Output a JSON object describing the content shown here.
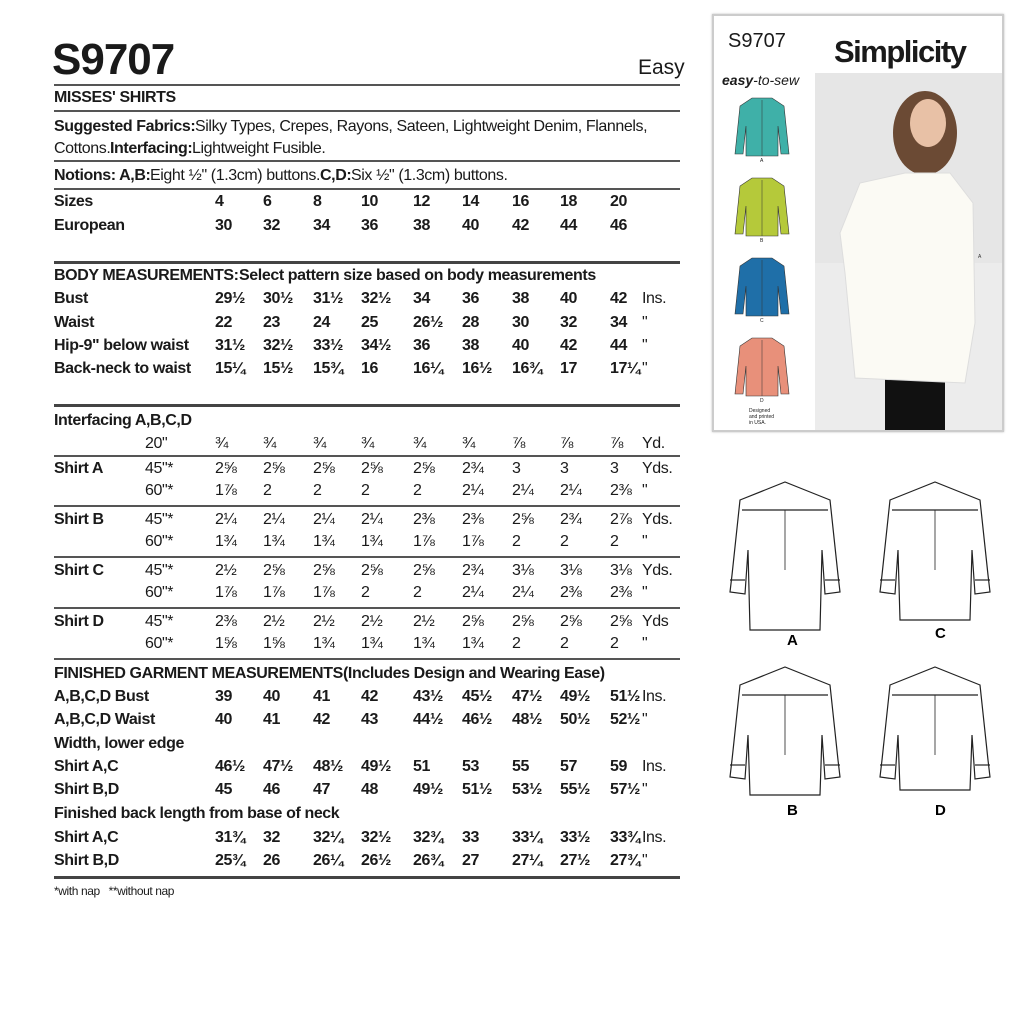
{
  "pattern_number": "S9707",
  "difficulty": "Easy",
  "title": "MISSES' SHIRTS",
  "fabrics_line1_label": "Suggested Fabrics:",
  "fabrics_line1": " Silky Types, Crepes, Rayons, Sateen, Lightweight Denim, Flannels,",
  "fabrics_line2": "Cottons. ",
  "interfacing_label": "Interfacing:",
  "interfacing_text": " Lightweight Fusible.",
  "notions_label1": "Notions: A,B:",
  "notions_text1": " Eight ½\" (1.3cm) buttons. ",
  "notions_label2": "C,D:",
  "notions_text2": " Six ½\" (1.3cm) buttons.",
  "sizes": {
    "label": "Sizes",
    "values": [
      "4",
      "6",
      "8",
      "10",
      "12",
      "14",
      "16",
      "18",
      "20"
    ]
  },
  "european": {
    "label": "European",
    "values": [
      "30",
      "32",
      "34",
      "36",
      "38",
      "40",
      "42",
      "44",
      "46"
    ]
  },
  "body": {
    "heading": "BODY MEASUREMENTS:",
    "heading_rest": " Select pattern size based on body measurements",
    "rows": [
      {
        "label": "Bust",
        "values": [
          "29½",
          "30½",
          "31½",
          "32½",
          "34",
          "36",
          "38",
          "40",
          "42"
        ],
        "unit": "Ins."
      },
      {
        "label": "Waist",
        "values": [
          "22",
          "23",
          "24",
          "25",
          "26½",
          "28",
          "30",
          "32",
          "34"
        ],
        "unit": "\""
      },
      {
        "label": "Hip-9\" below waist",
        "values": [
          "31½",
          "32½",
          "33½",
          "34½",
          "36",
          "38",
          "40",
          "42",
          "44"
        ],
        "unit": "\""
      },
      {
        "label": "Back-neck to waist",
        "values": [
          "15¼",
          "15½",
          "15¾",
          "16",
          "16¼",
          "16½",
          "16¾",
          "17",
          "17¼"
        ],
        "unit": "\""
      }
    ]
  },
  "yardage": {
    "heading": "Interfacing A,B,C,D",
    "interfacing": {
      "sub": "20\"",
      "values": [
        "¾",
        "¾",
        "¾",
        "¾",
        "¾",
        "¾",
        "⅞",
        "⅞",
        "⅞"
      ],
      "unit": "Yd."
    },
    "groups": [
      {
        "label": "Shirt A",
        "rows": [
          {
            "sub": "45\"*",
            "values": [
              "2⅝",
              "2⅝",
              "2⅝",
              "2⅝",
              "2⅝",
              "2¾",
              "3",
              "3",
              "3"
            ],
            "unit": "Yds."
          },
          {
            "sub": "60\"*",
            "values": [
              "1⅞",
              "2",
              "2",
              "2",
              "2",
              "2¼",
              "2¼",
              "2¼",
              "2⅜"
            ],
            "unit": "\""
          }
        ]
      },
      {
        "label": "Shirt B",
        "rows": [
          {
            "sub": "45\"*",
            "values": [
              "2¼",
              "2¼",
              "2¼",
              "2¼",
              "2⅜",
              "2⅜",
              "2⅝",
              "2¾",
              "2⅞"
            ],
            "unit": "Yds."
          },
          {
            "sub": "60\"*",
            "values": [
              "1¾",
              "1¾",
              "1¾",
              "1¾",
              "1⅞",
              "1⅞",
              "2",
              "2",
              "2"
            ],
            "unit": "\""
          }
        ]
      },
      {
        "label": "Shirt C",
        "rows": [
          {
            "sub": "45\"*",
            "values": [
              "2½",
              "2⅝",
              "2⅝",
              "2⅝",
              "2⅝",
              "2¾",
              "3⅛",
              "3⅛",
              "3⅛"
            ],
            "unit": "Yds."
          },
          {
            "sub": "60\"*",
            "values": [
              "1⅞",
              "1⅞",
              "1⅞",
              "2",
              "2",
              "2¼",
              "2¼",
              "2⅜",
              "2⅜"
            ],
            "unit": "\""
          }
        ]
      },
      {
        "label": "Shirt D",
        "rows": [
          {
            "sub": "45\"*",
            "values": [
              "2⅜",
              "2½",
              "2½",
              "2½",
              "2½",
              "2⅝",
              "2⅝",
              "2⅝",
              "2⅝"
            ],
            "unit": "Yds"
          },
          {
            "sub": "60\"*",
            "values": [
              "1⅝",
              "1⅝",
              "1¾",
              "1¾",
              "1¾",
              "1¾",
              "2",
              "2",
              "2"
            ],
            "unit": "\""
          }
        ]
      }
    ]
  },
  "finished": {
    "heading": "FINISHED GARMENT MEASUREMENTS",
    "heading_rest": " (Includes Design and Wearing Ease)",
    "rows": [
      {
        "label": "A,B,C,D Bust",
        "values": [
          "39",
          "40",
          "41",
          "42",
          "43½",
          "45½",
          "47½",
          "49½",
          "51½"
        ],
        "unit": "Ins."
      },
      {
        "label": "A,B,C,D Waist",
        "values": [
          "40",
          "41",
          "42",
          "43",
          "44½",
          "46½",
          "48½",
          "50½",
          "52½"
        ],
        "unit": "\""
      },
      {
        "label": "Width, lower edge",
        "values": [],
        "unit": ""
      },
      {
        "label": "Shirt A,C",
        "values": [
          "46½",
          "47½",
          "48½",
          "49½",
          "51",
          "53",
          "55",
          "57",
          "59"
        ],
        "unit": "Ins."
      },
      {
        "label": "Shirt B,D",
        "values": [
          "45",
          "46",
          "47",
          "48",
          "49½",
          "51½",
          "53½",
          "55½",
          "57½"
        ],
        "unit": "\""
      },
      {
        "label": "Finished back length from base of neck",
        "values": [],
        "unit": ""
      },
      {
        "label": "Shirt A,C",
        "values": [
          "31¾",
          "32",
          "32¼",
          "32½",
          "32¾",
          "33",
          "33¼",
          "33½",
          "33¾"
        ],
        "unit": "Ins."
      },
      {
        "label": "Shirt B,D",
        "values": [
          "25¾",
          "26",
          "26¼",
          "26½",
          "26¾",
          "27",
          "27¼",
          "27½",
          "27¾"
        ],
        "unit": "\""
      }
    ]
  },
  "footnote": "*with nap   **without nap",
  "cover": {
    "pattern_number": "S9707",
    "brand": "Simplicity",
    "easy": "easy",
    "to_sew": "-to-sew",
    "view_labels": [
      "A",
      "B",
      "C",
      "D"
    ],
    "photo_label": "A",
    "made_in": "Designed and printed in USA.",
    "colors": {
      "A": "#3fb0a8",
      "B": "#b5c93a",
      "C": "#1f6fa8",
      "D": "#e8907a"
    }
  },
  "line_art_labels": [
    "A",
    "C",
    "B",
    "D"
  ]
}
